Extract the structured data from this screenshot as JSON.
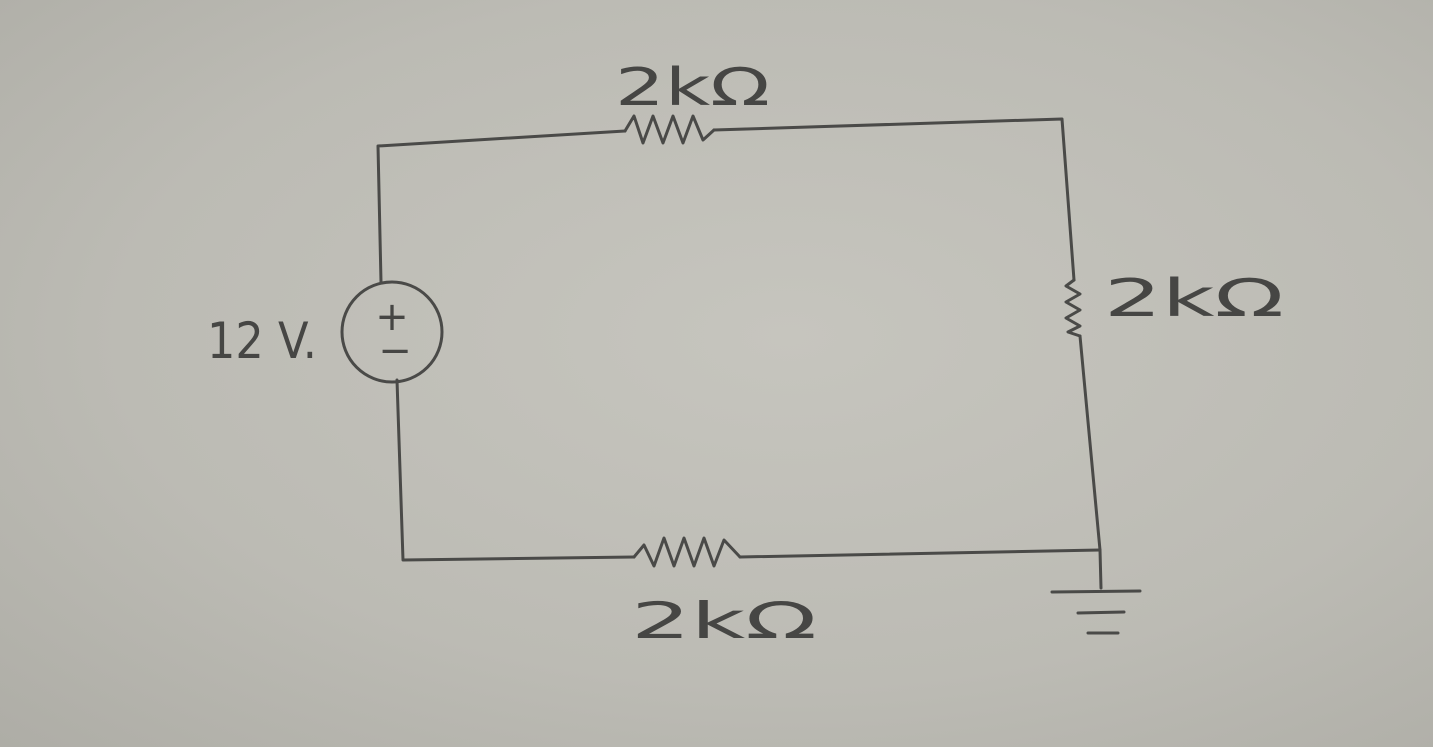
{
  "circuit": {
    "source": {
      "label": "12 V.",
      "plus_symbol": "+",
      "minus_symbol": "−"
    },
    "resistors": [
      {
        "position": "top",
        "label": "2kΩ"
      },
      {
        "position": "right",
        "label": "2kΩ"
      },
      {
        "position": "bottom",
        "label": "2kΩ"
      }
    ],
    "ground": {
      "symbol": "ground-icon"
    }
  }
}
